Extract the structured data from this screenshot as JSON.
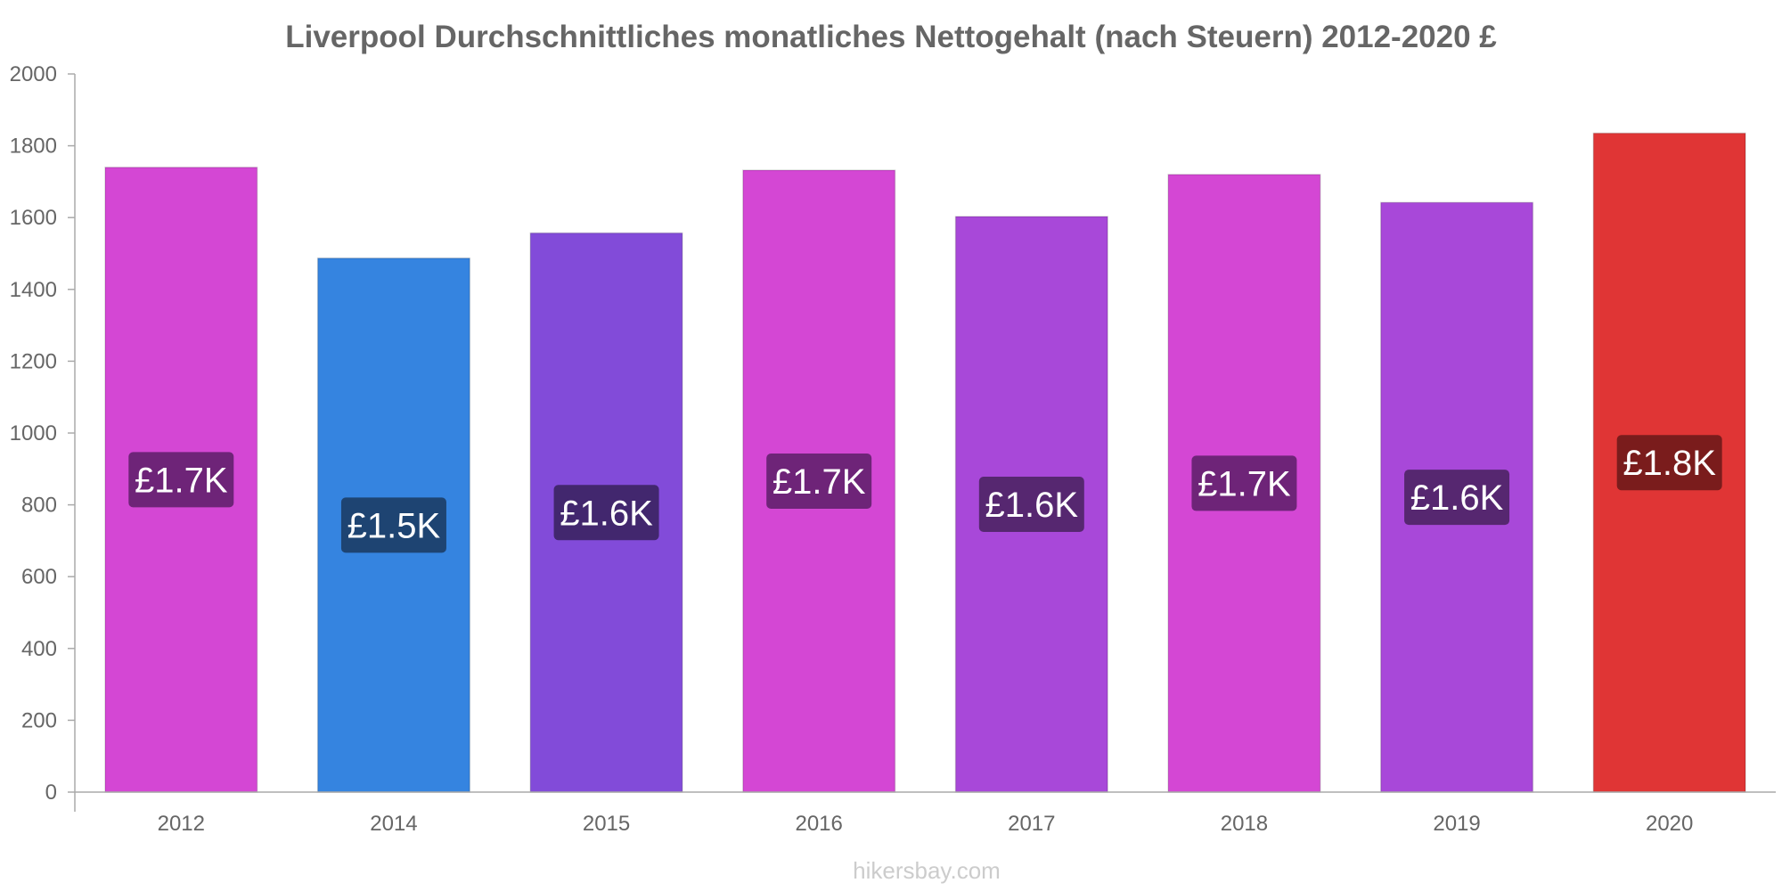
{
  "chart_data": {
    "type": "bar",
    "title": "Liverpool Durchschnittliches monatliches Nettogehalt (nach Steuern) 2012-2020 £",
    "xlabel": "",
    "ylabel": "",
    "ylim": [
      0,
      2000
    ],
    "yticks": [
      0,
      200,
      400,
      600,
      800,
      1000,
      1200,
      1400,
      1600,
      1800,
      2000
    ],
    "categories": [
      "2012",
      "2014",
      "2015",
      "2016",
      "2017",
      "2018",
      "2019",
      "2020"
    ],
    "values": [
      1740,
      1487,
      1557,
      1732,
      1603,
      1720,
      1642,
      1835
    ],
    "data_labels": [
      "£1.7K",
      "£1.5K",
      "£1.6K",
      "£1.7K",
      "£1.6K",
      "£1.7K",
      "£1.6K",
      "£1.8K"
    ],
    "bar_colors": [
      "#d447d4",
      "#3584e0",
      "#824bd9",
      "#d447d4",
      "#a848d9",
      "#d447d4",
      "#a848d9",
      "#e03535"
    ],
    "label_colors": [
      "#6e2478",
      "#1e4472",
      "#42276e",
      "#6e2478",
      "#562770",
      "#6e2478",
      "#562770",
      "#7a1c1c"
    ],
    "grid": false
  },
  "watermark": "hikersbay.com"
}
